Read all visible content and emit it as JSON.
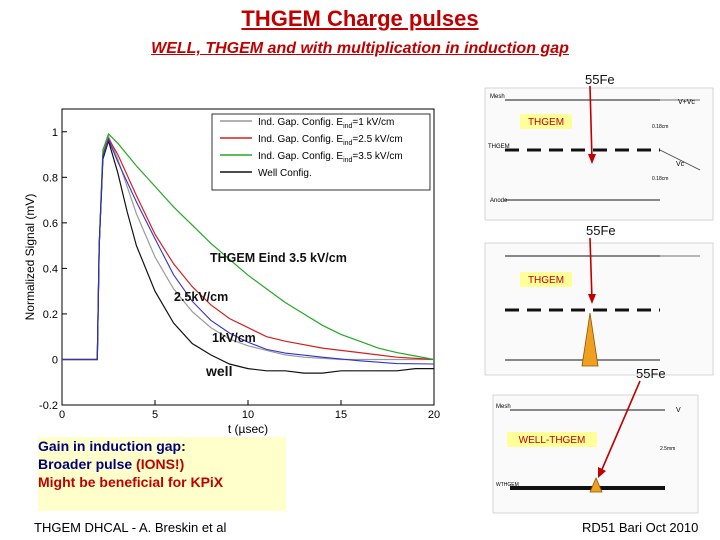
{
  "slide": {
    "title": "THGEM Charge pulses",
    "subtitle": "WELL, THGEM and with multiplication in induction gap",
    "footer_left": "THGEM DHCAL - A. Breskin et al",
    "footer_right": "RD51 Bari Oct 2010"
  },
  "annotations": {
    "eind35": "THGEM Eind 3.5 kV/cm",
    "kv25": "2.5kV/cm",
    "kv1": "1kV/cm",
    "well": "well"
  },
  "gainbox": {
    "line1_prefix": "Gain in induction gap",
    "line1_suffix": ":",
    "line2_prefix": "Broader pulse ",
    "line2_highlight": "(IONS!)",
    "line3": "Might be beneficial for KPiX"
  },
  "diagrams": {
    "fe1": "55Fe",
    "fe2": "55Fe",
    "fe3": "55Fe",
    "thgem1": "THGEM",
    "thgem2": "THGEM",
    "wellthgem": "WELL-THGEM",
    "mesh": "Mesh",
    "vplus": "V+Vc",
    "thgem_label": "THGEM",
    "anode": "Anode",
    "vc": "Vc",
    "dim1": "0.18cm",
    "dim2": "0.18cm",
    "well_mesh": "Mesh",
    "well_v": "V",
    "well_thgem": "WTHGEM",
    "well_dim": "2.5mm"
  },
  "colors": {
    "title": "#c00000",
    "series1": "#999999",
    "series2": "#d42020",
    "series3": "#22aa22",
    "series4": "#111111",
    "series_blue": "#3333cc",
    "gainbox_bg": "#ffffcc",
    "highlight": "#c00000",
    "arrow": "#c00000"
  },
  "chart_data": {
    "type": "line",
    "title": "",
    "xlabel": "t (µsec)",
    "ylabel": "Normalized Signal (mV)",
    "xlim": [
      0,
      20
    ],
    "ylim": [
      -0.2,
      1.1
    ],
    "xticks": [
      0,
      5,
      10,
      15,
      20
    ],
    "yticks": [
      -0.2,
      0,
      0.2,
      0.4,
      0.6,
      0.8,
      1
    ],
    "legend_position": "top-right",
    "series": [
      {
        "name": "Ind. Gap. Config. Eind=1 kV/cm",
        "legend_main": "Ind. Gap. Config. E",
        "legend_sub": "ind",
        "legend_rest": "=1 kV/cm",
        "x": [
          0,
          1.9,
          2.0,
          2.2,
          2.5,
          3,
          3.5,
          4,
          5,
          6,
          7,
          8,
          9,
          10,
          11,
          12,
          13,
          15,
          17,
          20
        ],
        "y": [
          0,
          0,
          0.5,
          0.9,
          0.98,
          0.88,
          0.76,
          0.64,
          0.45,
          0.31,
          0.21,
          0.14,
          0.09,
          0.06,
          0.04,
          0.02,
          0.01,
          0,
          0,
          0
        ]
      },
      {
        "name": "Ind. Gap. Config. Eind=2.5 kV/cm",
        "legend_main": "Ind. Gap. Config. E",
        "legend_sub": "ind",
        "legend_rest": "=2.5 kV/cm",
        "x": [
          0,
          1.9,
          2.0,
          2.2,
          2.5,
          3,
          4,
          5,
          6,
          7,
          8,
          9,
          10,
          11,
          12,
          14,
          16,
          18,
          20
        ],
        "y": [
          0,
          0,
          0.5,
          0.9,
          0.97,
          0.9,
          0.72,
          0.55,
          0.42,
          0.32,
          0.24,
          0.18,
          0.14,
          0.1,
          0.08,
          0.05,
          0.03,
          0.01,
          0
        ]
      },
      {
        "name": "Ind. Gap. Config. Eind=3.5 kV/cm",
        "legend_main": "Ind. Gap. Config. E",
        "legend_sub": "ind",
        "legend_rest": "=3.5 kV/cm",
        "x": [
          0,
          1.9,
          2.0,
          2.2,
          2.5,
          3,
          4,
          5,
          6,
          7,
          8,
          9,
          10,
          11,
          12,
          13,
          14,
          15,
          16,
          17,
          18,
          19,
          20
        ],
        "y": [
          0,
          0,
          0.5,
          0.92,
          0.99,
          0.95,
          0.85,
          0.76,
          0.67,
          0.59,
          0.51,
          0.44,
          0.37,
          0.31,
          0.25,
          0.2,
          0.15,
          0.11,
          0.08,
          0.05,
          0.03,
          0.015,
          0
        ]
      },
      {
        "name": "Well Config.",
        "legend_main": "Well Config.",
        "legend_sub": "",
        "legend_rest": "",
        "x": [
          0,
          1.9,
          2.0,
          2.2,
          2.5,
          3,
          3.5,
          4,
          5,
          6,
          7,
          8,
          9,
          10,
          11,
          12,
          13,
          14,
          15,
          16,
          17,
          18,
          19,
          20
        ],
        "y": [
          0,
          0,
          0.5,
          0.88,
          0.96,
          0.82,
          0.65,
          0.5,
          0.3,
          0.16,
          0.07,
          0.02,
          -0.02,
          -0.04,
          -0.05,
          -0.05,
          -0.06,
          -0.06,
          -0.05,
          -0.05,
          -0.05,
          -0.05,
          -0.04,
          -0.04
        ]
      }
    ]
  }
}
